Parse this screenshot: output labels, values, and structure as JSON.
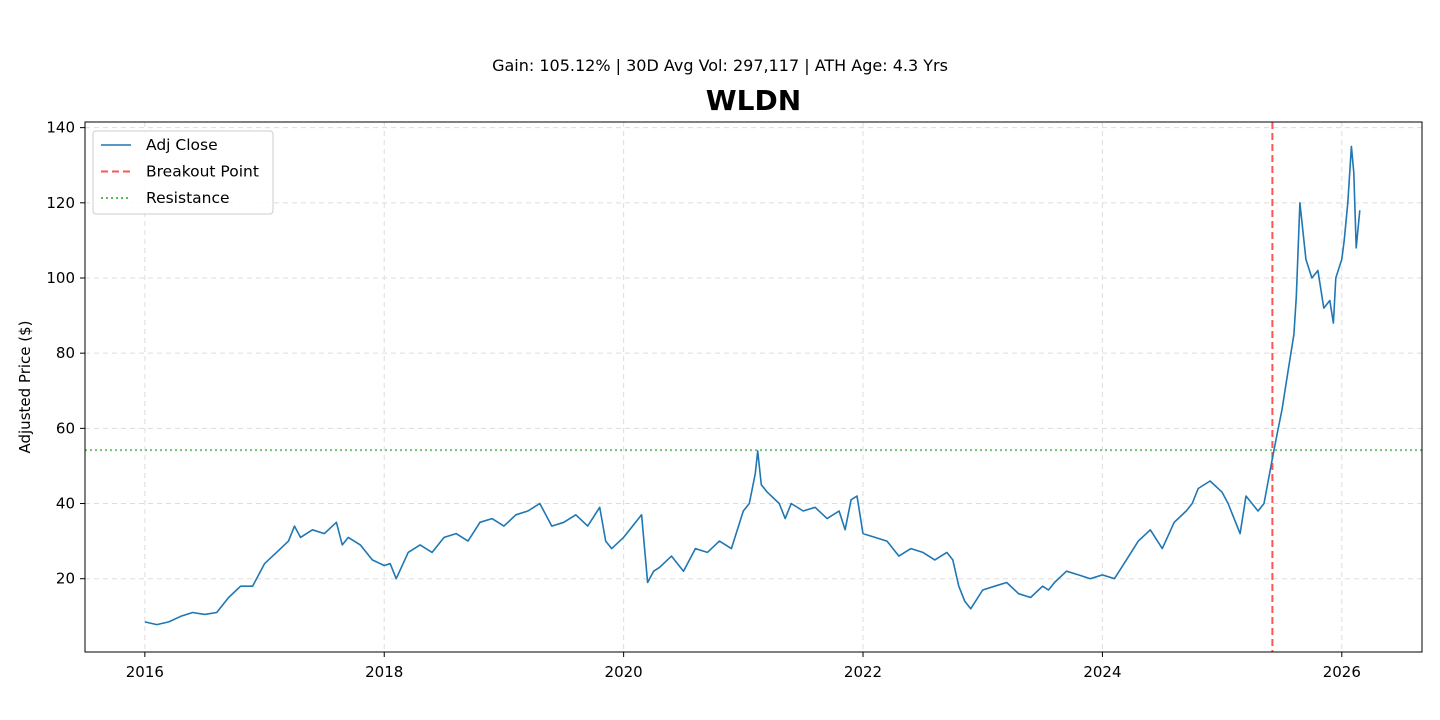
{
  "chart_data": {
    "type": "line",
    "title": "WLDN",
    "subtitle": "Gain: 105.12% | 30D Avg Vol: 297,117 | ATH Age: 4.3 Yrs",
    "xlabel": "",
    "ylabel": "Adjusted Price ($)",
    "xlim": [
      2015.5,
      2026.67
    ],
    "ylim": [
      0.5,
      141.5
    ],
    "x_ticks": [
      2016,
      2018,
      2020,
      2022,
      2024,
      2026
    ],
    "x_tick_labels": [
      "2016",
      "2018",
      "2020",
      "2022",
      "2024",
      "2026"
    ],
    "y_ticks": [
      20,
      40,
      60,
      80,
      100,
      120,
      140
    ],
    "y_tick_labels": [
      "20",
      "40",
      "60",
      "80",
      "100",
      "120",
      "140"
    ],
    "grid": true,
    "legend_position": "top-left",
    "legend": [
      "Adj Close",
      "Breakout Point",
      "Resistance"
    ],
    "colors": {
      "adj_close": "#1f77b4",
      "breakout": "#ff5555",
      "resistance": "#5cb85c",
      "grid": "#dddddd"
    },
    "series": [
      {
        "name": "Adj Close",
        "x": [
          2016.0,
          2016.1,
          2016.2,
          2016.3,
          2016.4,
          2016.5,
          2016.6,
          2016.7,
          2016.8,
          2016.9,
          2017.0,
          2017.1,
          2017.2,
          2017.25,
          2017.3,
          2017.4,
          2017.5,
          2017.6,
          2017.65,
          2017.7,
          2017.8,
          2017.9,
          2018.0,
          2018.05,
          2018.1,
          2018.2,
          2018.3,
          2018.4,
          2018.5,
          2018.6,
          2018.7,
          2018.8,
          2018.9,
          2019.0,
          2019.1,
          2019.2,
          2019.3,
          2019.4,
          2019.5,
          2019.6,
          2019.7,
          2019.8,
          2019.85,
          2019.9,
          2020.0,
          2020.1,
          2020.15,
          2020.2,
          2020.25,
          2020.3,
          2020.4,
          2020.5,
          2020.6,
          2020.7,
          2020.8,
          2020.9,
          2021.0,
          2021.05,
          2021.1,
          2021.12,
          2021.15,
          2021.2,
          2021.3,
          2021.35,
          2021.4,
          2021.5,
          2021.6,
          2021.7,
          2021.8,
          2021.85,
          2021.9,
          2021.95,
          2022.0,
          2022.1,
          2022.2,
          2022.3,
          2022.4,
          2022.5,
          2022.6,
          2022.7,
          2022.75,
          2022.8,
          2022.85,
          2022.9,
          2023.0,
          2023.1,
          2023.2,
          2023.3,
          2023.4,
          2023.5,
          2023.55,
          2023.6,
          2023.7,
          2023.8,
          2023.9,
          2024.0,
          2024.1,
          2024.2,
          2024.3,
          2024.4,
          2024.5,
          2024.6,
          2024.7,
          2024.75,
          2024.8,
          2024.9,
          2025.0,
          2025.05,
          2025.1,
          2025.15,
          2025.2,
          2025.25,
          2025.3,
          2025.35,
          2025.42,
          2025.45,
          2025.5,
          2025.55,
          2025.6,
          2025.62,
          2025.65,
          2025.7,
          2025.75,
          2025.8,
          2025.85,
          2025.9,
          2025.93,
          2025.95,
          2026.0,
          2026.02,
          2026.05,
          2026.08,
          2026.1,
          2026.12,
          2026.15
        ],
        "values": [
          8.5,
          7.8,
          8.5,
          10.0,
          11.0,
          10.5,
          11.0,
          15.0,
          18.0,
          18.0,
          24.0,
          27.0,
          30.0,
          34.0,
          31.0,
          33.0,
          32.0,
          35.0,
          29.0,
          31.0,
          29.0,
          25.0,
          23.5,
          24.0,
          20.0,
          27.0,
          29.0,
          27.0,
          31.0,
          32.0,
          30.0,
          35.0,
          36.0,
          34.0,
          37.0,
          38.0,
          40.0,
          34.0,
          35.0,
          37.0,
          34.0,
          39.0,
          30.0,
          28.0,
          31.0,
          35.0,
          37.0,
          19.0,
          22.0,
          23.0,
          26.0,
          22.0,
          28.0,
          27.0,
          30.0,
          28.0,
          38.0,
          40.0,
          48.0,
          54.0,
          45.0,
          43.0,
          40.0,
          36.0,
          40.0,
          38.0,
          39.0,
          36.0,
          38.0,
          33.0,
          41.0,
          42.0,
          32.0,
          31.0,
          30.0,
          26.0,
          28.0,
          27.0,
          25.0,
          27.0,
          25.0,
          18.0,
          14.0,
          12.0,
          17.0,
          18.0,
          19.0,
          16.0,
          15.0,
          18.0,
          17.0,
          19.0,
          22.0,
          21.0,
          20.0,
          21.0,
          20.0,
          25.0,
          30.0,
          33.0,
          28.0,
          35.0,
          38.0,
          40.0,
          44.0,
          46.0,
          43.0,
          40.0,
          36.0,
          32.0,
          42.0,
          40.0,
          38.0,
          40.0,
          52.0,
          57.0,
          65.0,
          75.0,
          85.0,
          95.0,
          120.0,
          105.0,
          100.0,
          102.0,
          92.0,
          94.0,
          88.0,
          100.0,
          105.0,
          110.0,
          120.0,
          135.0,
          128.0,
          108.0,
          118.0
        ]
      }
    ],
    "breakout_x": 2025.42,
    "resistance_y": 54.2
  }
}
